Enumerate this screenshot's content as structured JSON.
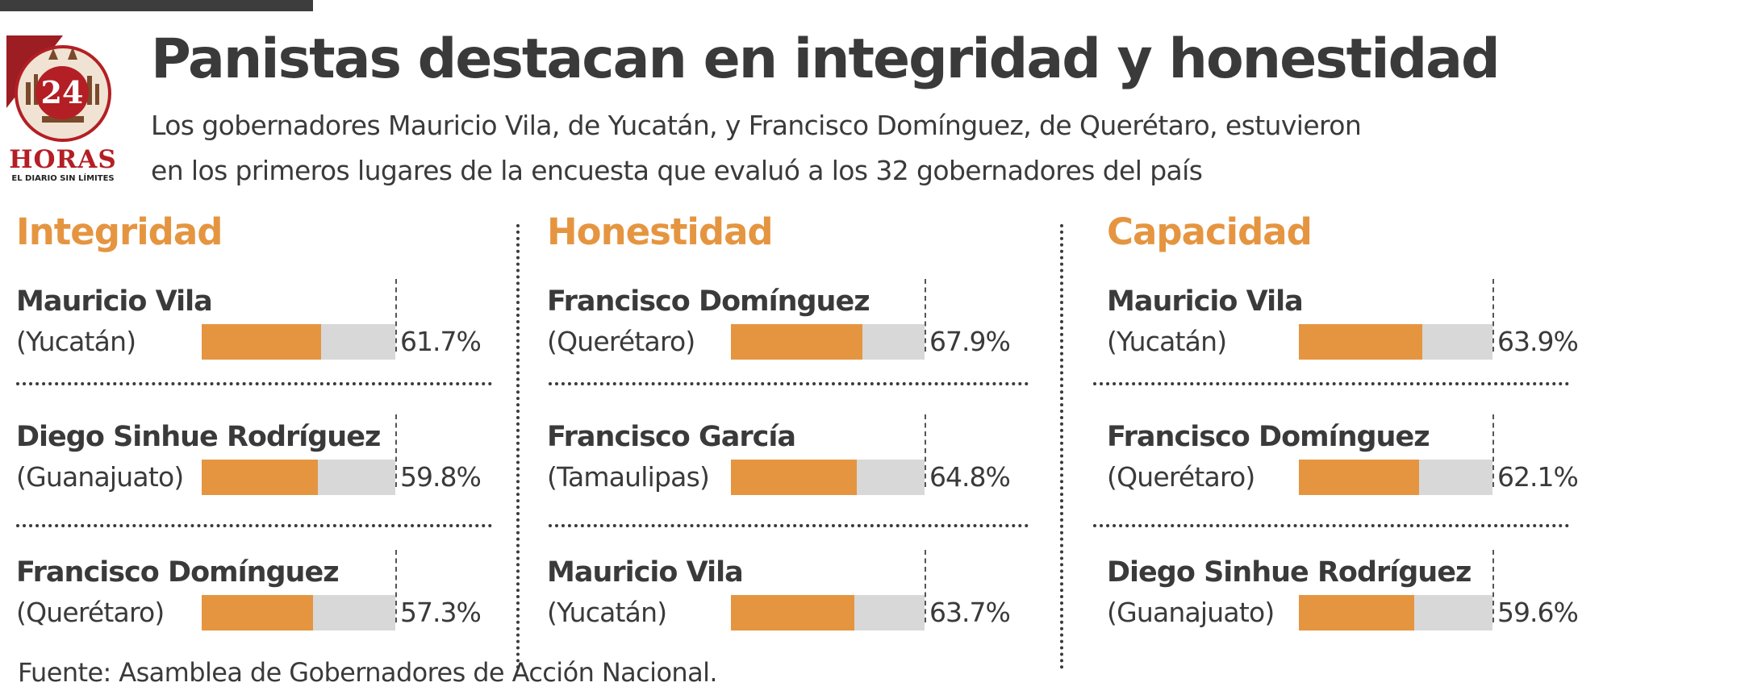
{
  "logo": {
    "number": "24",
    "word": "HORAS",
    "tagline": "EL DIARIO SIN LÍMITES"
  },
  "header": {
    "title": "Panistas destacan en integridad y honestidad",
    "subtitle_line1": "Los gobernadores Mauricio Vila, de Yucatán, y Francisco Domínguez, de Querétaro, estuvieron",
    "subtitle_line2": "en los primeros lugares de la encuesta que evaluó a los 32 gobernadores del país"
  },
  "colors": {
    "bar_fill": "#e59540",
    "bar_track": "#d8d8d8",
    "section_title": "#e59540",
    "logo_red": "#b31f24",
    "text": "#3a3a3a"
  },
  "chart_data": [
    {
      "type": "bar",
      "title": "Integridad",
      "ylim": [
        0,
        100
      ],
      "categories": [
        "Mauricio Vila",
        "Diego Sinhue Rodríguez",
        "Francisco Domínguez"
      ],
      "states": [
        "(Yucatán)",
        "(Guanajuato)",
        "(Querétaro)"
      ],
      "values": [
        61.7,
        59.8,
        57.3
      ],
      "labels": [
        "61.7%",
        "59.8%",
        "57.3%"
      ]
    },
    {
      "type": "bar",
      "title": "Honestidad",
      "ylim": [
        0,
        100
      ],
      "categories": [
        "Francisco Domínguez",
        "Francisco García",
        "Mauricio Vila"
      ],
      "states": [
        "(Querétaro)",
        "(Tamaulipas)",
        "(Yucatán)"
      ],
      "values": [
        67.9,
        64.8,
        63.7
      ],
      "labels": [
        "67.9%",
        "64.8%",
        "63.7%"
      ]
    },
    {
      "type": "bar",
      "title": "Capacidad",
      "ylim": [
        0,
        100
      ],
      "categories": [
        "Mauricio Vila",
        "Francisco Domínguez",
        "Diego Sinhue Rodríguez"
      ],
      "states": [
        "(Yucatán)",
        "(Querétaro)",
        "(Guanajuato)"
      ],
      "values": [
        63.9,
        62.1,
        59.6
      ],
      "labels": [
        "63.9%",
        "62.1%",
        "59.6%"
      ]
    }
  ],
  "source": "Fuente: Asamblea de Gobernadores de Acción Nacional."
}
